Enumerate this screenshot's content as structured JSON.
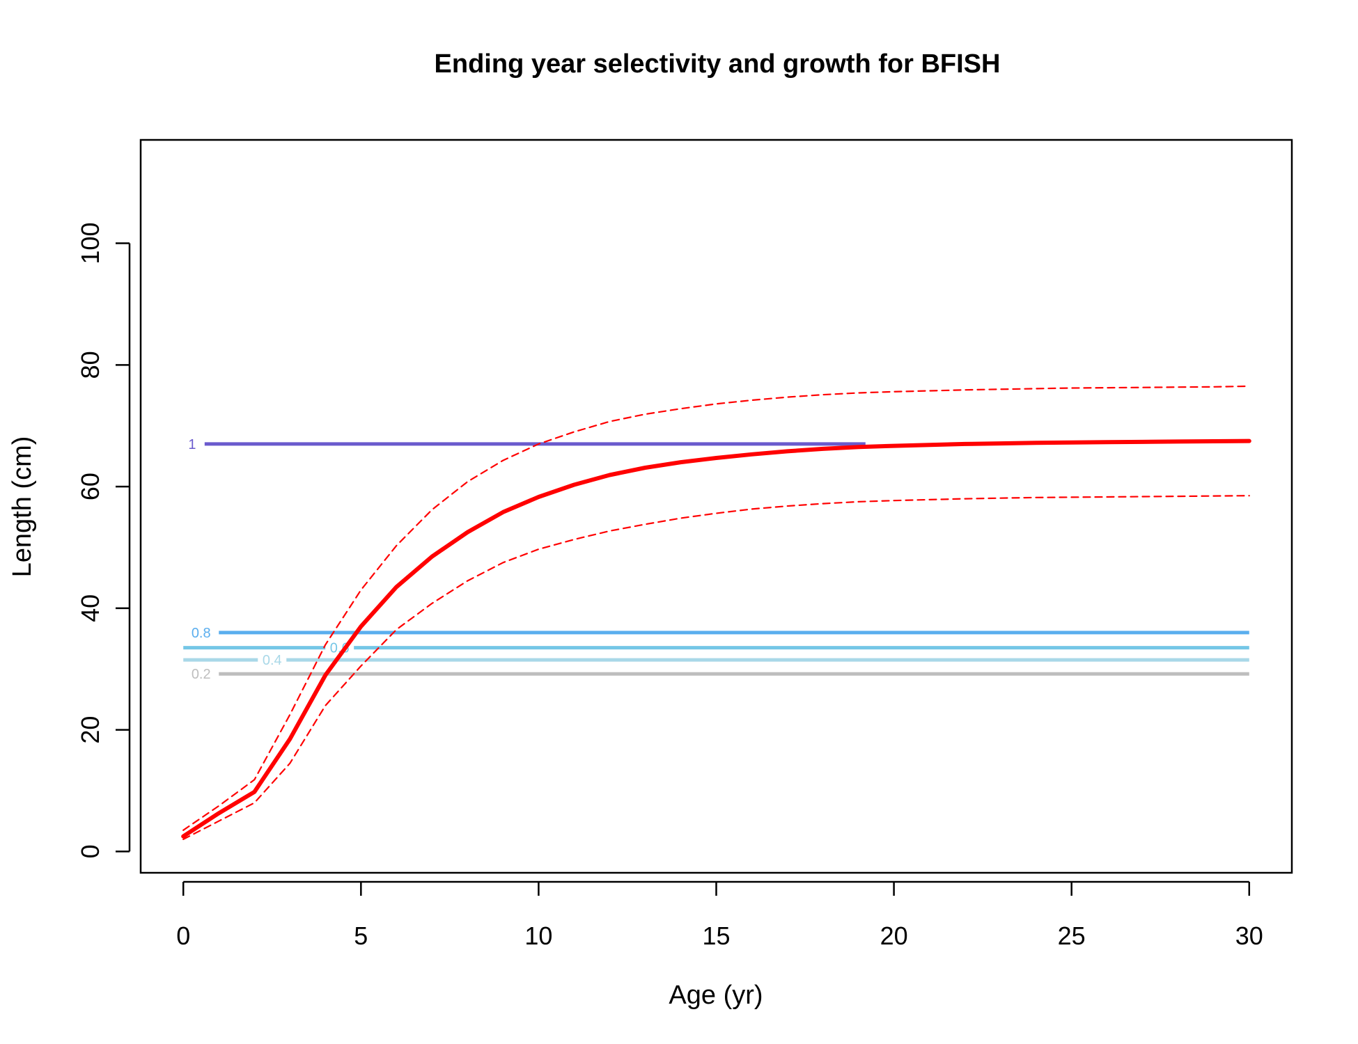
{
  "chart_data": {
    "type": "line",
    "title": "Ending year selectivity and growth for BFISH",
    "xlabel": "Age (yr)",
    "ylabel": "Length (cm)",
    "xlim": [
      -1.2,
      31.2
    ],
    "ylim": [
      -3.5,
      117
    ],
    "x_ticks": [
      0,
      5,
      10,
      15,
      20,
      25,
      30
    ],
    "y_ticks": [
      0,
      20,
      40,
      60,
      80,
      100
    ],
    "x_tick_labels": [
      "0",
      "5",
      "10",
      "15",
      "20",
      "25",
      "30"
    ],
    "y_tick_labels": [
      "0",
      "20",
      "40",
      "60",
      "80",
      "100"
    ],
    "grid": false,
    "legend": "none",
    "series": [
      {
        "role": "mean",
        "color": "#ff0000",
        "style": "solid",
        "x": [
          0,
          1,
          2,
          3,
          4,
          5,
          6,
          7,
          8,
          9,
          10,
          11,
          12,
          13,
          14,
          15,
          16,
          17,
          18,
          19,
          20,
          21,
          22,
          23,
          24,
          25,
          26,
          27,
          28,
          29,
          30
        ],
        "y": [
          2.5,
          6.3,
          9.8,
          18.5,
          29.0,
          37.0,
          43.5,
          48.5,
          52.5,
          55.8,
          58.3,
          60.3,
          61.9,
          63.1,
          64.0,
          64.7,
          65.3,
          65.8,
          66.2,
          66.5,
          66.7,
          66.85,
          67.0,
          67.1,
          67.2,
          67.25,
          67.3,
          67.35,
          67.4,
          67.45,
          67.5
        ]
      },
      {
        "role": "upper",
        "color": "#ff0000",
        "style": "dashed",
        "x": [
          0,
          1,
          2,
          3,
          4,
          5,
          6,
          7,
          8,
          9,
          10,
          11,
          12,
          13,
          14,
          15,
          16,
          17,
          18,
          19,
          20,
          21,
          22,
          23,
          24,
          25,
          26,
          27,
          28,
          29,
          30
        ],
        "y": [
          3.5,
          7.5,
          11.8,
          22.5,
          34.0,
          43.0,
          50.3,
          56.2,
          60.8,
          64.3,
          67.0,
          69.0,
          70.7,
          71.9,
          72.8,
          73.6,
          74.2,
          74.7,
          75.1,
          75.4,
          75.6,
          75.75,
          75.9,
          76.0,
          76.1,
          76.2,
          76.25,
          76.3,
          76.35,
          76.4,
          76.5
        ]
      },
      {
        "role": "lower",
        "color": "#ff0000",
        "style": "dashed",
        "x": [
          0,
          1,
          2,
          3,
          4,
          5,
          6,
          7,
          8,
          9,
          10,
          11,
          12,
          13,
          14,
          15,
          16,
          17,
          18,
          19,
          20,
          21,
          22,
          23,
          24,
          25,
          26,
          27,
          28,
          29,
          30
        ],
        "y": [
          2.0,
          5.0,
          8.0,
          14.5,
          24.0,
          30.5,
          36.5,
          40.8,
          44.5,
          47.5,
          49.7,
          51.3,
          52.7,
          53.8,
          54.8,
          55.6,
          56.3,
          56.8,
          57.2,
          57.5,
          57.7,
          57.85,
          58.0,
          58.1,
          58.2,
          58.25,
          58.3,
          58.35,
          58.4,
          58.45,
          58.5
        ]
      }
    ],
    "selectivity_contours": [
      {
        "level_label": "1",
        "length": 67.0,
        "x_start": 0.6,
        "x_end": 19.2,
        "color": "#6a5acd",
        "label_x": 0.25
      },
      {
        "level_label": "0.8",
        "length": 36.0,
        "x_start": 1.0,
        "x_end": 30,
        "color": "#5aaeee",
        "label_x": 0.5
      },
      {
        "level_label": "0.6",
        "length": 33.5,
        "x_start": 0,
        "x_end": 30,
        "color": "#74c6e6",
        "label_x": 4.4,
        "label_partly_hidden": true
      },
      {
        "level_label": "0.4",
        "length": 31.5,
        "x_start": 0,
        "x_end": 30,
        "color": "#a9d8e8",
        "label_x": 2.5
      },
      {
        "level_label": "0.2",
        "length": 29.2,
        "x_start": 1.0,
        "x_end": 30,
        "color": "#bebebe",
        "label_x": 0.5
      }
    ]
  }
}
